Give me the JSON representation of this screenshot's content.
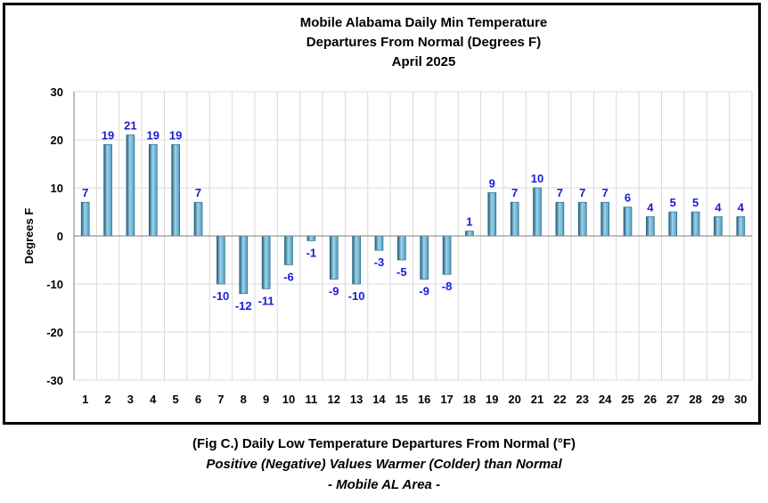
{
  "chart_data": {
    "type": "bar",
    "title_lines": [
      "Mobile Alabama Daily Min Temperature",
      "Departures From Normal (Degrees F)",
      "April 2025"
    ],
    "xlabel": "",
    "ylabel": "Degrees F",
    "ylim": [
      -30,
      30
    ],
    "yticks": [
      30,
      20,
      10,
      0,
      -10,
      -20,
      -30
    ],
    "categories": [
      "1",
      "2",
      "3",
      "4",
      "5",
      "6",
      "7",
      "8",
      "9",
      "10",
      "11",
      "12",
      "13",
      "14",
      "15",
      "16",
      "17",
      "18",
      "19",
      "20",
      "21",
      "22",
      "23",
      "24",
      "25",
      "26",
      "27",
      "28",
      "29",
      "30"
    ],
    "values": [
      7,
      19,
      21,
      19,
      19,
      7,
      -10,
      -12,
      -11,
      -6,
      -1,
      -9,
      -10,
      -3,
      -5,
      -9,
      -8,
      1,
      9,
      7,
      10,
      7,
      7,
      7,
      6,
      4,
      5,
      5,
      4,
      4
    ],
    "grid": true,
    "legend": "none",
    "colors": {
      "bar": "#4a9cc0",
      "bar_dark": "#1f5d7a",
      "bar_light": "#9fd3ea",
      "data_label": "#1a1adb",
      "grid": "#d9d9d9"
    }
  },
  "caption": {
    "line1": "(Fig C.) Daily Low Temperature Departures From Normal (°F)",
    "line2": "Positive (Negative) Values Warmer (Colder) than Normal",
    "line3": "- Mobile AL Area -"
  }
}
